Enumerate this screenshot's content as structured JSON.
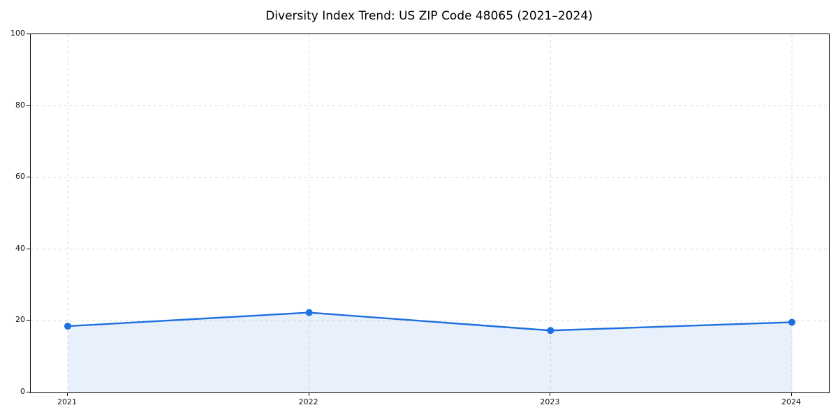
{
  "figure": {
    "background": "#ffffff"
  },
  "chart_data": {
    "type": "area",
    "title": "Diversity Index Trend: US ZIP Code 48065 (2021–2024)",
    "categories": [
      "2021",
      "2022",
      "2023",
      "2024"
    ],
    "values": [
      18.5,
      22.3,
      17.3,
      19.6
    ],
    "xlabel": "",
    "ylabel": "",
    "ylim": [
      0,
      100
    ],
    "yticks": [
      0,
      20,
      40,
      60,
      80,
      100
    ],
    "grid": "dashed",
    "legend": "none",
    "line_color": "#1e6fe0",
    "fill_color": "rgba(30, 111, 224, 0.10)",
    "marker": "circle",
    "marker_radius": 5,
    "grid_color": "#dcdcdc",
    "axis_color": "#000000",
    "tick_label_color": "#111111"
  }
}
